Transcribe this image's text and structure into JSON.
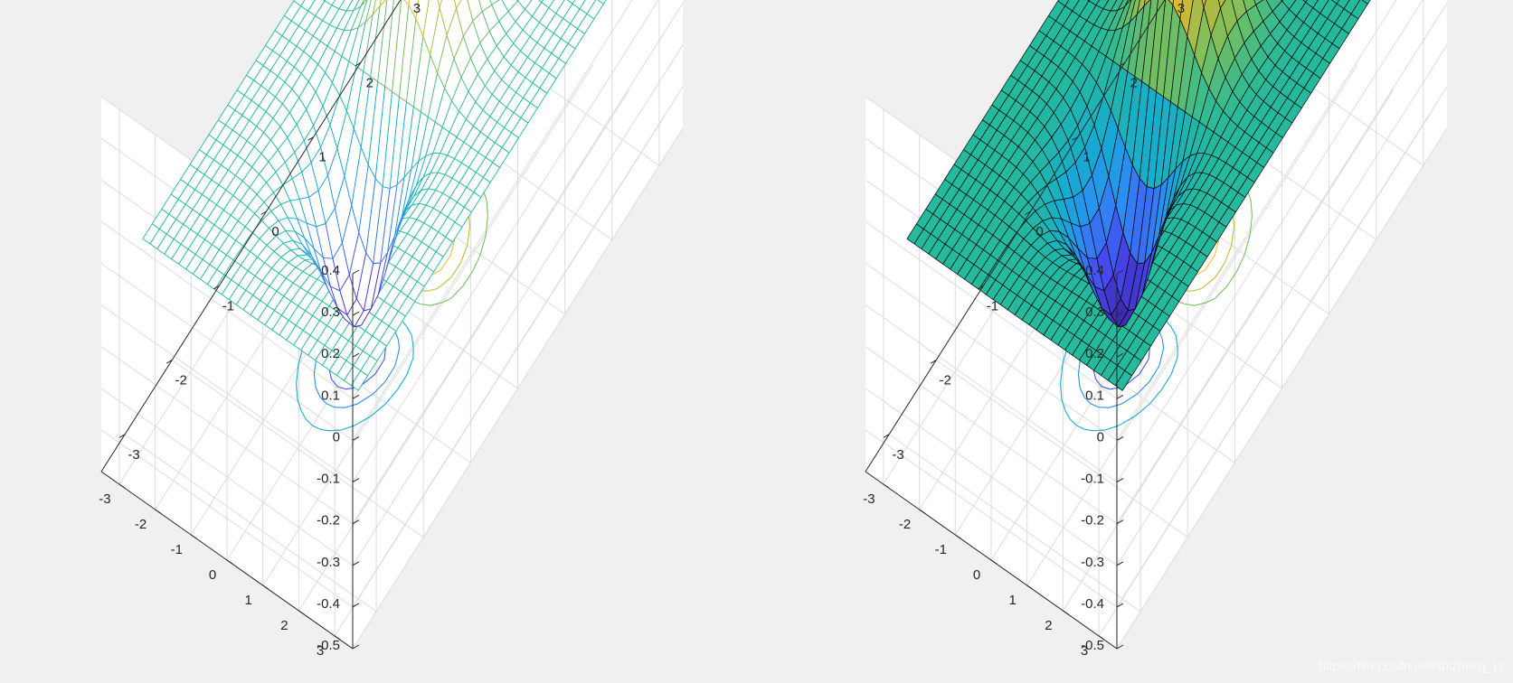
{
  "chart_data": [
    {
      "type": "surface-mesh",
      "function": "z = x * exp(-x^2 - y^2)",
      "title": "",
      "xlabel": "",
      "ylabel": "",
      "zlabel": "",
      "xlim": [
        -3.5,
        3.5
      ],
      "ylim": [
        -3.5,
        3.5
      ],
      "zlim": [
        -0.5,
        0.4
      ],
      "x_ticks": [
        -3,
        -2,
        -1,
        0,
        1,
        2,
        3
      ],
      "y_ticks": [
        -3,
        -2,
        -1,
        0,
        1,
        2,
        3
      ],
      "z_ticks": [
        -0.5,
        -0.4,
        -0.3,
        -0.2,
        -0.1,
        0,
        0.1,
        0.2,
        0.3,
        0.4
      ],
      "x_tick_labels": [
        "-3",
        "-2",
        "-1",
        "0",
        "1",
        "2",
        "3"
      ],
      "y_tick_labels": [
        "-3",
        "-2",
        "-1",
        "0",
        "1",
        "2",
        "3"
      ],
      "z_tick_labels": [
        "-0.5",
        "-0.4",
        "-0.3",
        "-0.2",
        "-0.1",
        "0",
        "0.1",
        "0.2",
        "0.3",
        "0.4"
      ],
      "grid": true,
      "view": {
        "azimuth": -37.5,
        "elevation": 30
      },
      "colormap": "parula",
      "faces": "none",
      "edges": "colormap",
      "contours_on_floor": true,
      "contour_levels": [
        -0.4,
        -0.3,
        -0.2,
        -0.1,
        0,
        0.1,
        0.2,
        0.3,
        0.4
      ]
    },
    {
      "type": "surface",
      "function": "z = x * exp(-x^2 - y^2)",
      "title": "",
      "xlabel": "",
      "ylabel": "",
      "zlabel": "",
      "xlim": [
        -3.5,
        3.5
      ],
      "ylim": [
        -3.5,
        3.5
      ],
      "zlim": [
        -0.5,
        0.4
      ],
      "x_ticks": [
        -3,
        -2,
        -1,
        0,
        1,
        2,
        3
      ],
      "y_ticks": [
        -3,
        -2,
        -1,
        0,
        1,
        2,
        3
      ],
      "z_ticks": [
        -0.5,
        -0.4,
        -0.3,
        -0.2,
        -0.1,
        0,
        0.1,
        0.2,
        0.3,
        0.4
      ],
      "x_tick_labels": [
        "-3",
        "-2",
        "-1",
        "0",
        "1",
        "2",
        "3"
      ],
      "y_tick_labels": [
        "-3",
        "-2",
        "-1",
        "0",
        "1",
        "2",
        "3"
      ],
      "z_tick_labels": [
        "-0.5",
        "-0.4",
        "-0.3",
        "-0.2",
        "-0.1",
        "0",
        "0.1",
        "0.2",
        "0.3",
        "0.4"
      ],
      "grid": true,
      "view": {
        "azimuth": -37.5,
        "elevation": 30
      },
      "colormap": "parula",
      "faces": "colormap",
      "edges": "#000000",
      "contours_on_floor": true,
      "contour_levels": [
        -0.4,
        -0.3,
        -0.2,
        -0.1,
        0,
        0.1,
        0.2,
        0.3,
        0.4
      ]
    }
  ],
  "watermark": "https://blog.csdn.net/shizheng_Li",
  "colors": {
    "background": "#f0f0f0",
    "axes_background": "#ffffff",
    "grid": "#dcdcdc",
    "axis_line": "#262626"
  }
}
